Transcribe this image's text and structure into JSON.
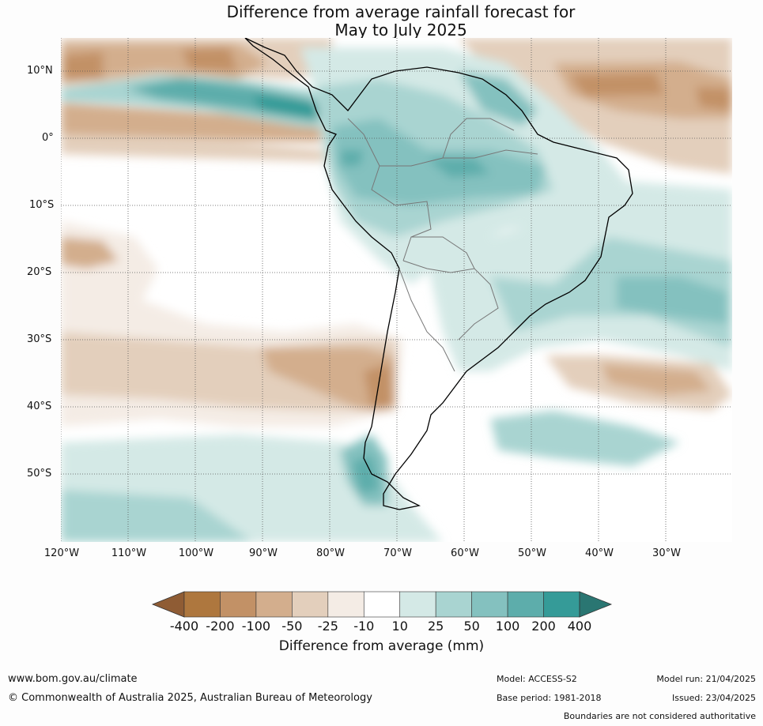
{
  "title": {
    "line1": "Difference from average rainfall forecast for",
    "line2": "May to July 2025"
  },
  "map": {
    "region": "South America",
    "latitude_labels": [
      "10°N",
      "0°",
      "10°S",
      "20°S",
      "30°S",
      "40°S",
      "50°S"
    ],
    "longitude_labels": [
      "120°W",
      "110°W",
      "100°W",
      "90°W",
      "80°W",
      "70°W",
      "60°W",
      "50°W",
      "40°W",
      "30°W"
    ],
    "grid": "dotted",
    "rainfall_pattern": [
      {
        "area": "Equatorial eastern Pacific band near 5°N",
        "category": "100 to 200 mm wetter"
      },
      {
        "area": "Colombia, Ecuador, Peru and western Amazon",
        "category": "50 to 100 mm wetter"
      },
      {
        "area": "Eastern Pacific near 10°N and 2°N",
        "category": "50 to 100 mm drier"
      },
      {
        "area": "Southeast Brazil coast and adjacent Atlantic",
        "category": "50 to 100 mm wetter"
      },
      {
        "area": "Central Chile",
        "category": "100 to 200 mm drier"
      },
      {
        "area": "Southern Pacific near 30-40°S",
        "category": "25 to 50 mm drier"
      },
      {
        "area": "Southern Patagonia and adjacent seas",
        "category": "25 to 100 mm wetter"
      },
      {
        "area": "Central continent and Argentina interior",
        "category": "-10 to 10 mm"
      }
    ]
  },
  "colorbar": {
    "title": "Difference from average (mm)",
    "tick_labels": [
      "-400",
      "-200",
      "-100",
      "-50",
      "-25",
      "-10",
      "10",
      "25",
      "50",
      "100",
      "200",
      "400"
    ],
    "colors": [
      "#8f5c34",
      "#ae773e",
      "#c29166",
      "#d3ae8d",
      "#e3cfbc",
      "#f4ece5",
      "#ffffff",
      "#d4e9e6",
      "#a9d4d1",
      "#84c1bf",
      "#5dadab",
      "#359b98",
      "#2a7672"
    ]
  },
  "footer": {
    "url": "www.bom.gov.au/climate",
    "copyright": "© Commonwealth of Australia 2025, Australian Bureau of Meteorology",
    "model": "Model: ACCESS-S2",
    "base_period": "Base period: 1981-2018",
    "model_run": "Model run: 21/04/2025",
    "issued": "Issued: 23/04/2025",
    "disclaimer": "Boundaries are not considered authoritative"
  }
}
